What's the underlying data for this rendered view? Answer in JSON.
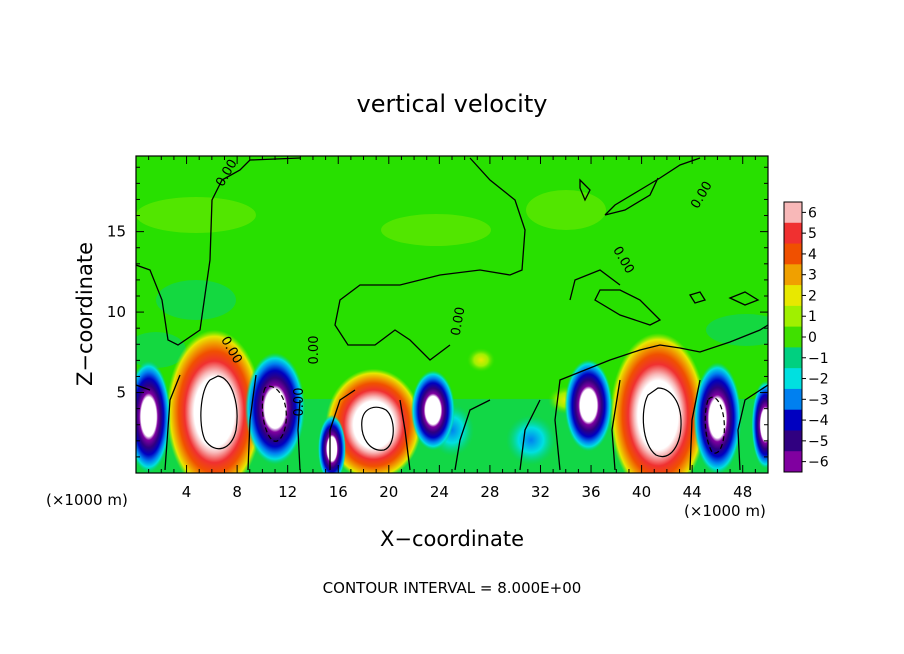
{
  "chart_data": {
    "type": "heatmap",
    "title": "vertical velocity",
    "xlabel": "X−coordinate",
    "ylabel": "Z−coordinate",
    "x_unit_left": "(×1000 m)",
    "x_unit_right": "(×1000 m)",
    "footer": "CONTOUR INTERVAL = 8.000E+00",
    "xlim": [
      0,
      50
    ],
    "ylim": [
      0,
      19.7
    ],
    "x_ticks": [
      4,
      8,
      12,
      16,
      20,
      24,
      28,
      32,
      36,
      40,
      44,
      48
    ],
    "y_ticks": [
      5,
      10,
      15
    ],
    "colorbar": {
      "ticks": [
        "6",
        "5",
        "4",
        "3",
        "2",
        "1",
        "0",
        "−1",
        "−2",
        "−3",
        "−4",
        "−5",
        "−6"
      ],
      "values": [
        6,
        5,
        4,
        3,
        2,
        1,
        0,
        -1,
        -2,
        -3,
        -4,
        -5,
        -6
      ],
      "colors": [
        "#f8b8b8",
        "#f03030",
        "#f05000",
        "#f0a000",
        "#e8e800",
        "#a0f000",
        "#40e000",
        "#00d080",
        "#00e0e0",
        "#0080f0",
        "#0000c0",
        "#300080",
        "#8000a0"
      ]
    },
    "contour_labels": [
      "0.00",
      "0.00",
      "0.00",
      "0.00",
      "0.00",
      "0.00",
      "0.00"
    ],
    "updraft_cores": [
      {
        "x": 6.2,
        "z": 3.8,
        "w": 6
      },
      {
        "x": 18.8,
        "z": 3.0,
        "w": 6
      },
      {
        "x": 41.3,
        "z": 3.6,
        "w": 6
      }
    ],
    "downdraft_cores": [
      {
        "x": 1.0,
        "z": 3.5,
        "w": -6
      },
      {
        "x": 11.0,
        "z": 4.0,
        "w": -6
      },
      {
        "x": 15.5,
        "z": 1.5,
        "w": -5
      },
      {
        "x": 23.5,
        "z": 3.9,
        "w": -5
      },
      {
        "x": 35.8,
        "z": 4.2,
        "w": -6
      },
      {
        "x": 46.0,
        "z": 3.4,
        "w": -6
      },
      {
        "x": 49.8,
        "z": 3.0,
        "w": -4
      }
    ],
    "background_value": 0
  }
}
